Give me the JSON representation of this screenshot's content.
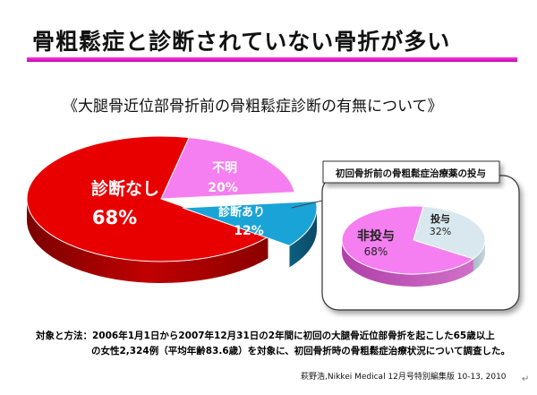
{
  "slide": {
    "title": "骨粗鬆症と診断されていない骨折が多い",
    "subtitle": "《大腿骨近位部骨折前の骨粗鬆症診断の有無について》",
    "note_line1": "対象と方法：2006年1月1日から2007年12月31日の2年間に初回の大腿骨近位部骨折を起こした65歳以上",
    "note_line2": "の女性2,324例（平均年齢83.6歳）を対象に、初回骨折時の骨粗鬆症治療状況について調査した。",
    "source": "萩野浩,Nikkei Medical 12月号特別編集版 10-13, 2010",
    "paragraph_mark": "↵"
  },
  "colors": {
    "title_rule": "#e020d0",
    "red": "#e80000",
    "pink": "#f57ff0",
    "blue": "#1aa3d6",
    "light_blue": "#d8e8ee"
  },
  "chart_data": [
    {
      "type": "pie",
      "slices": [
        {
          "label": "診断なし",
          "value": 68,
          "value_label": "68%",
          "color": "#e80000"
        },
        {
          "label": "不明",
          "value": 20,
          "value_label": "20%",
          "color": "#f57ff0"
        },
        {
          "label": "診断あり",
          "value": 12,
          "value_label": "12%",
          "color": "#1aa3d6"
        }
      ]
    },
    {
      "type": "pie",
      "title": "初回骨折前の骨粗鬆症治療薬の投与",
      "slices": [
        {
          "label": "非投与",
          "value": 68,
          "value_label": "68%",
          "color": "#f57ff0"
        },
        {
          "label": "投与",
          "value": 32,
          "value_label": "32%",
          "color": "#d8e8ee"
        }
      ]
    }
  ]
}
